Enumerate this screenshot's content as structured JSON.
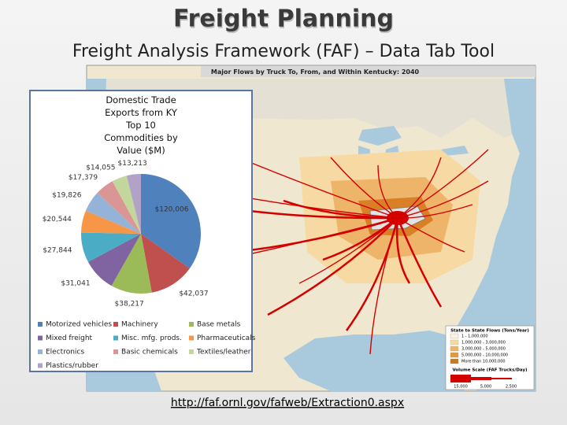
{
  "slide": {
    "title": "Freight Planning",
    "subtitle": "Freight Analysis Framework (FAF) – Data Tab Tool",
    "link": "http://faf.ornl.gov/fafweb/Extraction0.aspx"
  },
  "map": {
    "title": "Major Flows by Truck To, From, and Within Kentucky: 2040",
    "legend_title": "State to State Flows (Tons/Year)",
    "legend_items": [
      "1 - 1,000,000",
      "1,000,000 - 3,000,000",
      "3,000,000 - 5,000,000",
      "5,000,000 - 10,000,000",
      "More than 10,000,000"
    ],
    "scale_title": "Volume Scale (FAF Trucks/Day)",
    "scale_labels": [
      "15,000",
      "5,000",
      "2,500"
    ]
  },
  "chart_data": {
    "type": "pie",
    "title": "Domestic Trade Exports from KY Top 10 Commodities by Value ($M)",
    "categories": [
      "Motorized vehicles",
      "Machinery",
      "Base metals",
      "Mixed freight",
      "Misc. mfg. prods.",
      "Pharmaceuticals",
      "Electronics",
      "Basic chemicals",
      "Textiles/leather",
      "Plastics/rubber"
    ],
    "values": [
      120006,
      42037,
      38217,
      31041,
      27844,
      20544,
      19826,
      17379,
      14055,
      13213
    ],
    "value_labels": [
      "$120,006",
      "$42,037",
      "$38,217",
      "$31,041",
      "$27,844",
      "$20,544",
      "$19,826",
      "$17,379",
      "$14,055",
      "$13,213"
    ],
    "colors": [
      "#4f81bd",
      "#c0504d",
      "#9bbb59",
      "#8064a2",
      "#4bacc6",
      "#f79646",
      "#95b3d7",
      "#d99694",
      "#c3d69b",
      "#b3a2c7"
    ],
    "legend": "bottom"
  }
}
